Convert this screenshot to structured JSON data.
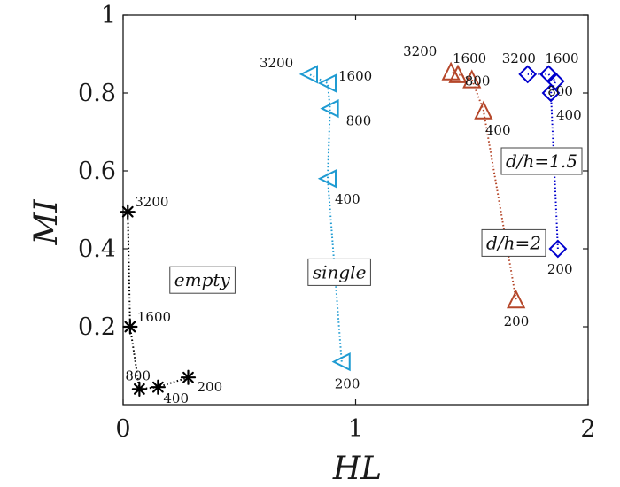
{
  "chart_data": {
    "type": "scatter",
    "xlabel": "HL",
    "ylabel": "MI",
    "xlim": [
      0,
      2
    ],
    "ylim": [
      0,
      1
    ],
    "xticks": [
      "0",
      "1",
      "2"
    ],
    "yticks": [
      "0.2",
      "0.4",
      "0.6",
      "0.8",
      "1"
    ],
    "grid": false,
    "series": [
      {
        "name": "empty",
        "marker": "asterisk",
        "color": "#000000",
        "points": [
          {
            "x": 0.28,
            "y": 0.07,
            "label": "200"
          },
          {
            "x": 0.15,
            "y": 0.045,
            "label": "400"
          },
          {
            "x": 0.07,
            "y": 0.04,
            "label": "800"
          },
          {
            "x": 0.03,
            "y": 0.2,
            "label": "1600"
          },
          {
            "x": 0.02,
            "y": 0.495,
            "label": "3200"
          }
        ]
      },
      {
        "name": "single",
        "marker": "triangle-left",
        "color": "#1f9bd2",
        "points": [
          {
            "x": 0.94,
            "y": 0.11,
            "label": "200"
          },
          {
            "x": 0.88,
            "y": 0.58,
            "label": "400"
          },
          {
            "x": 0.89,
            "y": 0.76,
            "label": "800"
          },
          {
            "x": 0.88,
            "y": 0.825,
            "label": "1600"
          },
          {
            "x": 0.8,
            "y": 0.848,
            "label": "3200"
          }
        ]
      },
      {
        "name": "d/h=2",
        "marker": "triangle-up",
        "color": "#b5472a",
        "points": [
          {
            "x": 1.69,
            "y": 0.27,
            "label": "200"
          },
          {
            "x": 1.55,
            "y": 0.755,
            "label": "400"
          },
          {
            "x": 1.5,
            "y": 0.835,
            "label": "800"
          },
          {
            "x": 1.44,
            "y": 0.848,
            "label": "1600"
          },
          {
            "x": 1.41,
            "y": 0.855,
            "label": "3200"
          }
        ]
      },
      {
        "name": "d/h=1.5",
        "marker": "diamond",
        "color": "#0000cd",
        "points": [
          {
            "x": 1.87,
            "y": 0.4,
            "label": "200"
          },
          {
            "x": 1.84,
            "y": 0.8,
            "label": "400"
          },
          {
            "x": 1.86,
            "y": 0.83,
            "label": "800"
          },
          {
            "x": 1.83,
            "y": 0.848,
            "label": "1600"
          },
          {
            "x": 1.74,
            "y": 0.848,
            "label": "3200"
          }
        ]
      }
    ],
    "annotations": [
      {
        "text": "empty",
        "x": 0.34,
        "y": 0.32
      },
      {
        "text": "single",
        "x": 0.93,
        "y": 0.34
      },
      {
        "text": "d/h=2",
        "x": 1.68,
        "y": 0.415
      },
      {
        "text": "d/h=1.5",
        "x": 1.8,
        "y": 0.625
      }
    ]
  }
}
